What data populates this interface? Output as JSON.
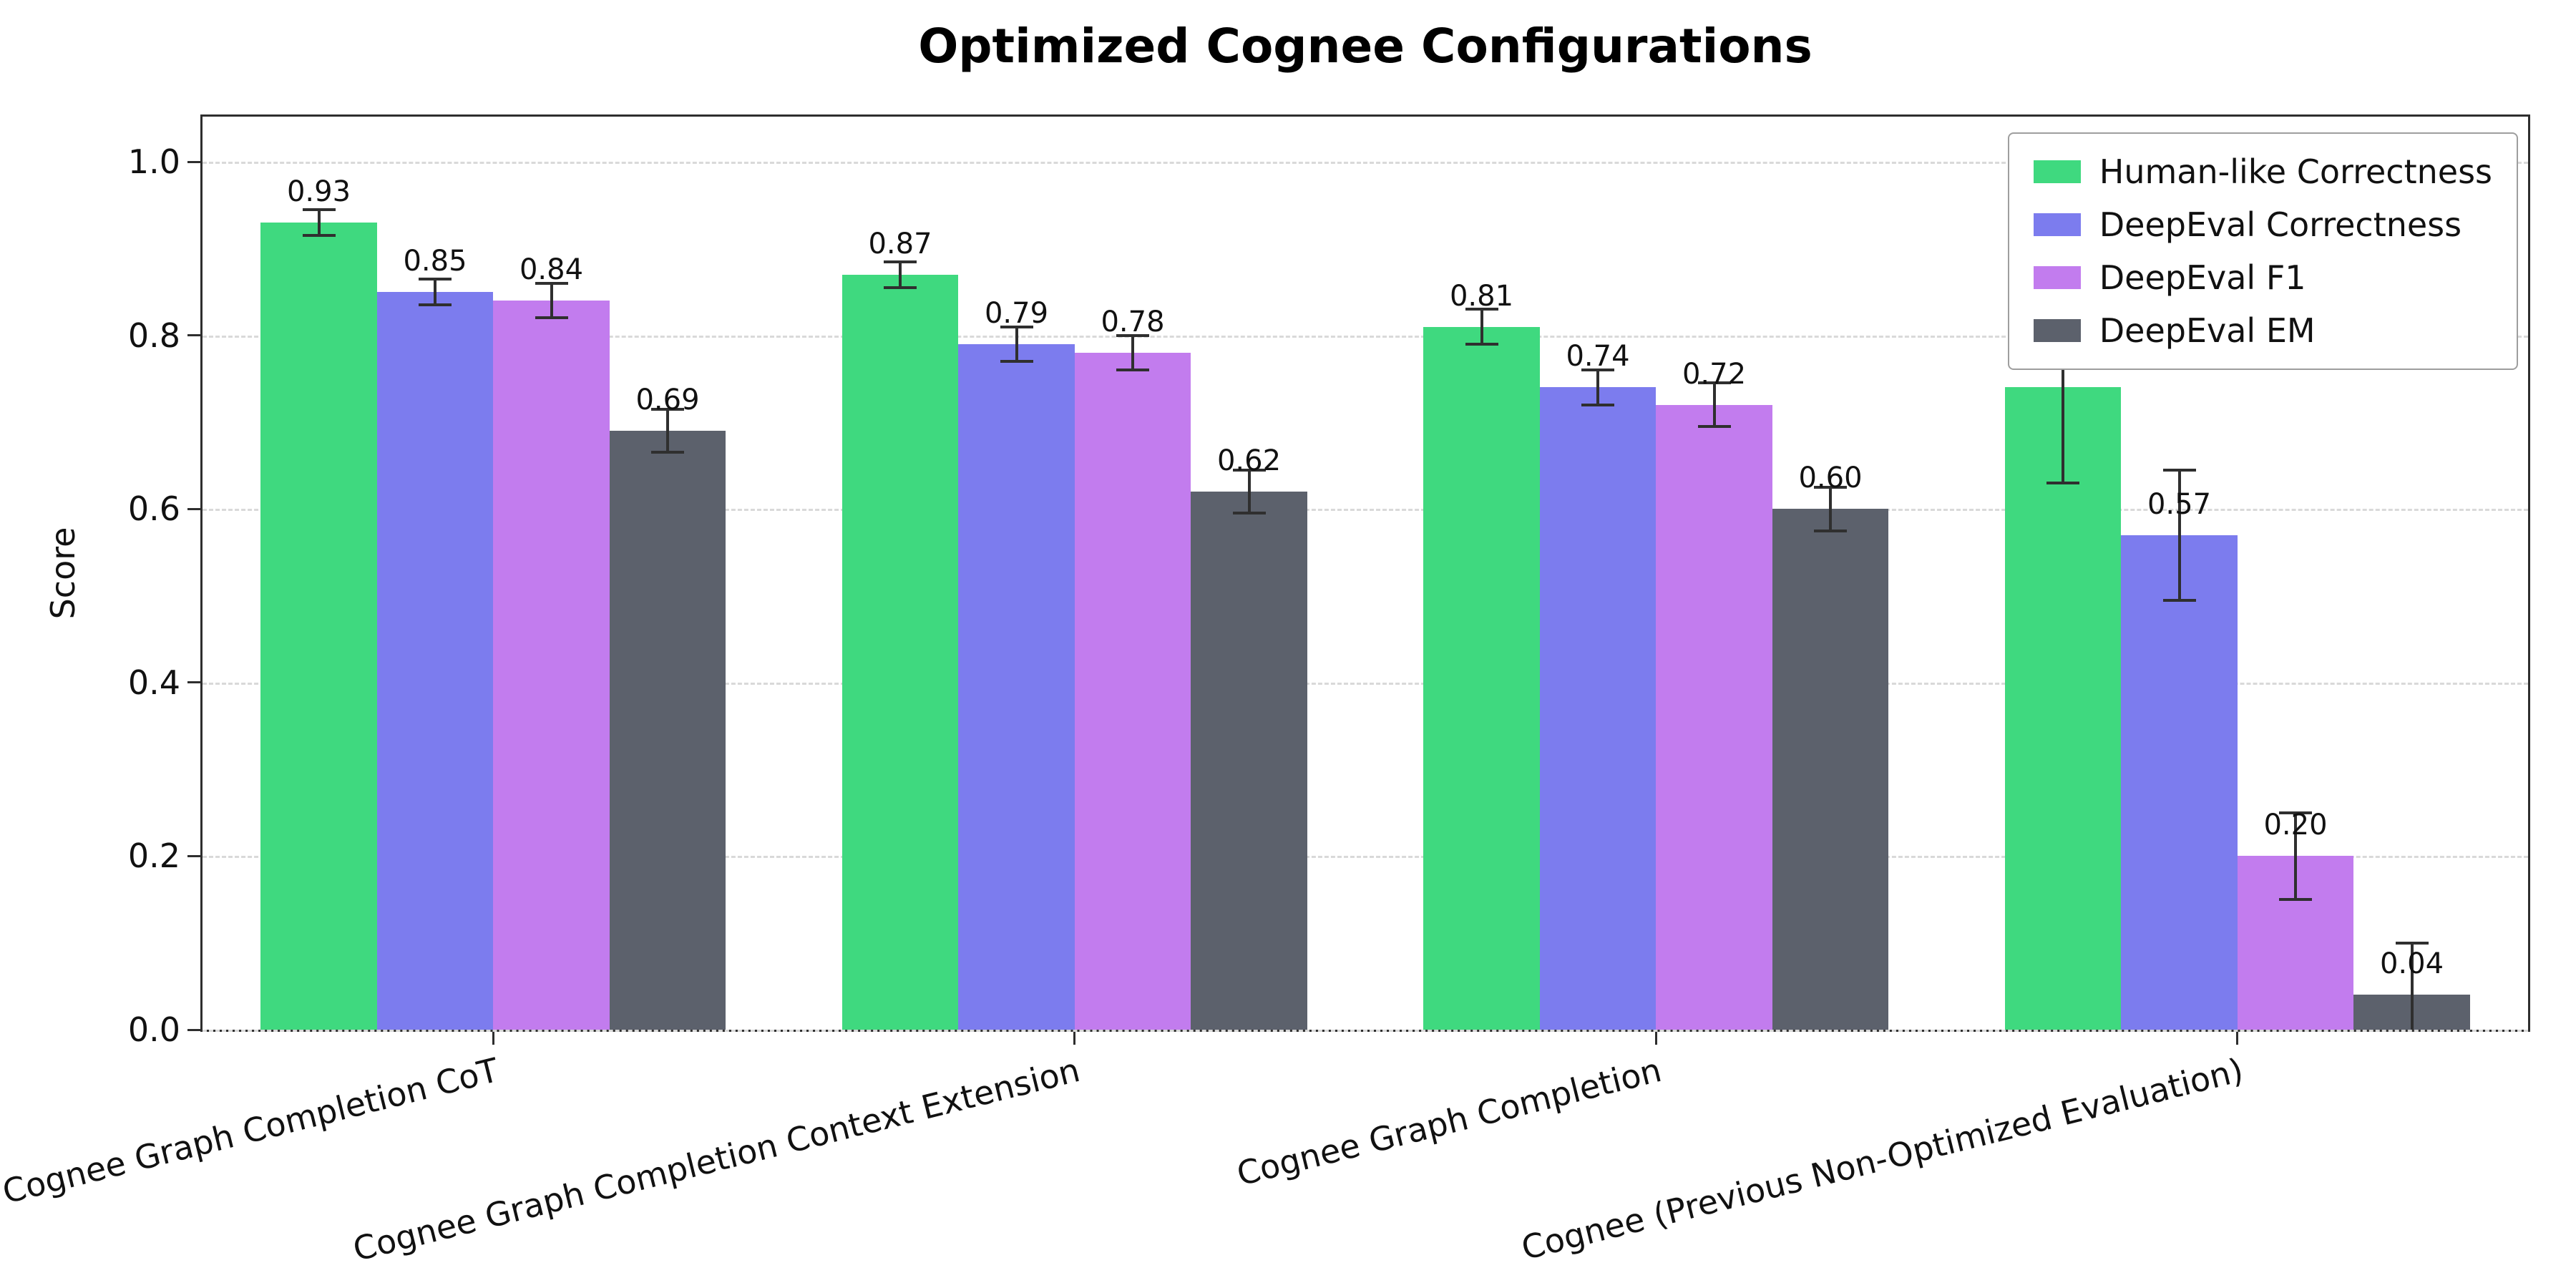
{
  "title": "Optimized Cognee Configurations",
  "chart_data": {
    "type": "bar",
    "title": "Optimized Cognee Configurations",
    "xlabel": "",
    "ylabel": "Score",
    "ylim": [
      0,
      1.052
    ],
    "yticks": [
      0.0,
      0.2,
      0.4,
      0.6,
      0.8,
      1.0
    ],
    "grid": "dashed-horizontal",
    "legend_position": "upper-right",
    "error_bars": true,
    "categories": [
      "Cognee Graph Completion CoT",
      "Cognee Graph Completion Context Extension",
      "Cognee Graph Completion",
      "Cognee (Previous Non-Optimized Evaluation)"
    ],
    "series": [
      {
        "name": "Human-like Correctness",
        "color": "#3fd97f",
        "values": [
          0.93,
          0.87,
          0.81,
          0.74
        ],
        "errors": [
          0.015,
          0.015,
          0.02,
          0.11
        ]
      },
      {
        "name": "DeepEval Correctness",
        "color": "#7c7cee",
        "values": [
          0.85,
          0.79,
          0.74,
          0.57
        ],
        "errors": [
          0.015,
          0.02,
          0.02,
          0.075
        ]
      },
      {
        "name": "DeepEval F1",
        "color": "#c27cee",
        "values": [
          0.84,
          0.78,
          0.72,
          0.2
        ],
        "errors": [
          0.02,
          0.02,
          0.025,
          0.05
        ]
      },
      {
        "name": "DeepEval EM",
        "color": "#5c616c",
        "values": [
          0.69,
          0.62,
          0.6,
          0.04
        ],
        "errors": [
          0.025,
          0.025,
          0.025,
          0.06
        ]
      }
    ]
  }
}
